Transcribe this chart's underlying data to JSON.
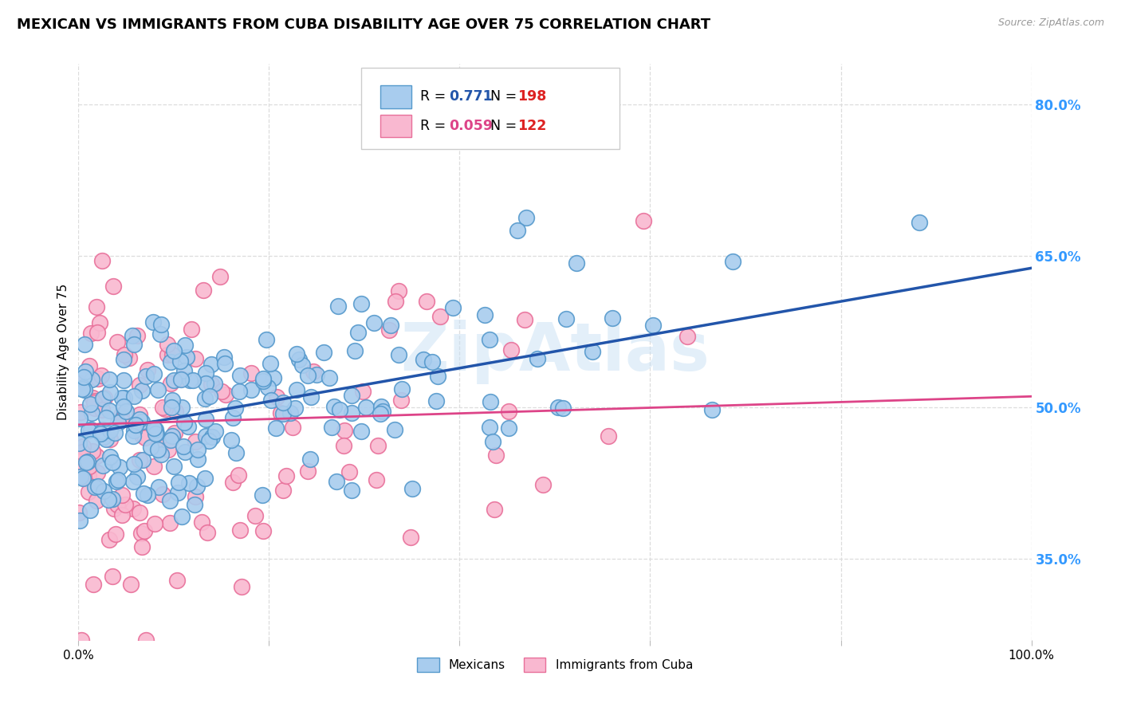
{
  "title": "MEXICAN VS IMMIGRANTS FROM CUBA DISABILITY AGE OVER 75 CORRELATION CHART",
  "source": "Source: ZipAtlas.com",
  "ylabel": "Disability Age Over 75",
  "blue_R": "0.771",
  "blue_N": "198",
  "pink_R": "0.059",
  "pink_N": "122",
  "blue_color": "#A8CCEE",
  "pink_color": "#F9B8D0",
  "blue_edge_color": "#5599CC",
  "pink_edge_color": "#E8709A",
  "blue_line_color": "#2255AA",
  "pink_line_color": "#DD4488",
  "watermark": "ZipAtlas",
  "xmin": 0.0,
  "xmax": 1.0,
  "ymin": 0.27,
  "ymax": 0.84,
  "blue_slope": 0.165,
  "blue_intercept": 0.473,
  "pink_slope": 0.028,
  "pink_intercept": 0.483,
  "grid_color": "#DDDDDD",
  "background_color": "#FFFFFF",
  "title_fontsize": 13,
  "axis_label_fontsize": 11,
  "tick_fontsize": 11,
  "right_tick_color": "#3399FF",
  "seed": 7
}
